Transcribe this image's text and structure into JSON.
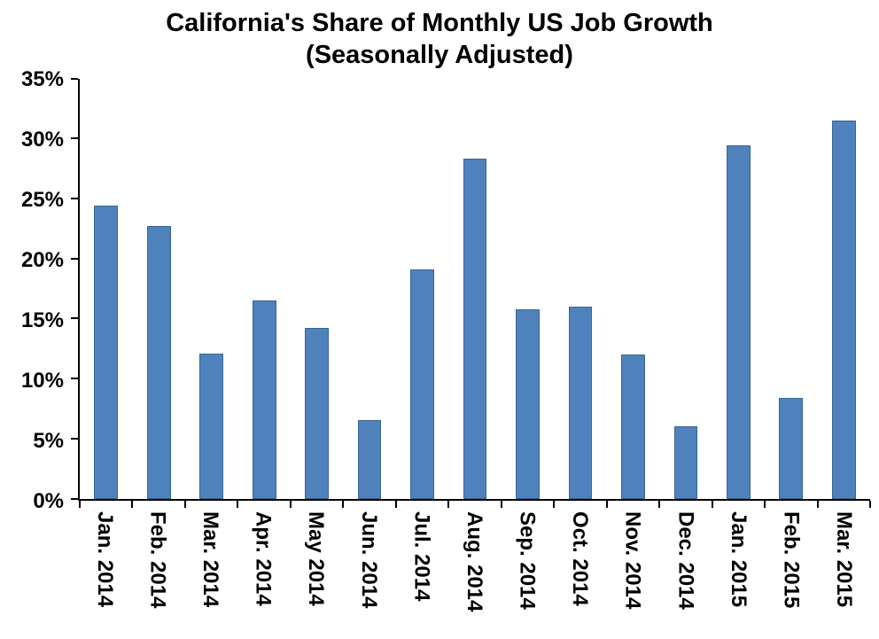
{
  "title": {
    "line1": "California's Share of Monthly US Job Growth",
    "line2": "(Seasonally Adjusted)"
  },
  "chart_data": {
    "type": "bar",
    "title": "California's Share of Monthly US Job Growth",
    "subtitle": "(Seasonally Adjusted)",
    "categories": [
      "Jan. 2014",
      "Feb. 2014",
      "Mar. 2014",
      "Apr. 2014",
      "May 2014",
      "Jun. 2014",
      "Jul. 2014",
      "Aug. 2014",
      "Sep. 2014",
      "Oct. 2014",
      "Nov. 2014",
      "Dec. 2014",
      "Jan. 2015",
      "Feb. 2015",
      "Mar. 2015"
    ],
    "values": [
      24.4,
      22.7,
      12.1,
      16.5,
      14.2,
      6.5,
      19.1,
      28.3,
      15.8,
      16.0,
      12.0,
      6.0,
      29.4,
      8.4,
      31.5
    ],
    "value_unit": "%",
    "xlabel": "",
    "ylabel": "",
    "ylim": [
      0,
      35
    ],
    "ytick_step": 5,
    "ytick_labels": [
      "0%",
      "5%",
      "10%",
      "15%",
      "20%",
      "25%",
      "30%",
      "35%"
    ],
    "grid": false,
    "legend": false,
    "bar_color": "#4F81BD",
    "bar_border_color": "#3A6791",
    "axis_color": "#000000"
  }
}
